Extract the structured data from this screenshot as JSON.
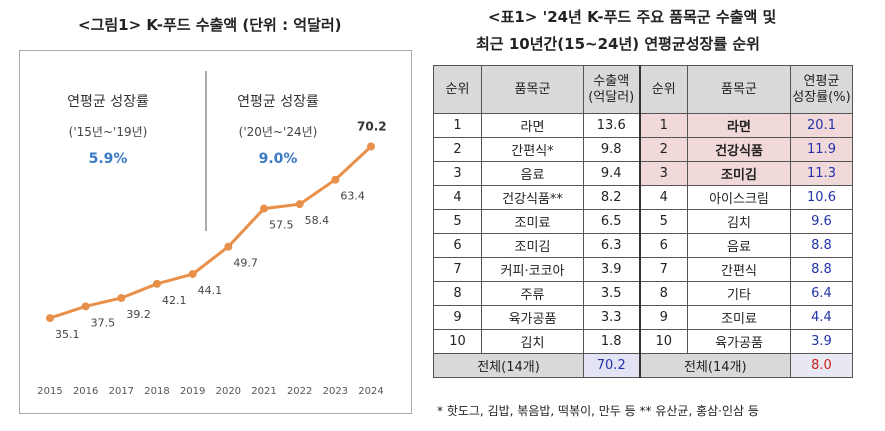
{
  "figure": {
    "title": "<그림1> K-푸드 수출액 (단위 : 억달러)",
    "growth_blocks": [
      {
        "label": "연평균 성장률",
        "period": "('15년~'19년)",
        "rate": "5.9%"
      },
      {
        "label": "연평균 성장률",
        "period": "('20년~'24년)",
        "rate": "9.0%"
      }
    ],
    "colors": {
      "line": "#e8904a",
      "marker": "#e8904a",
      "rate_text": "#3a7ac4"
    }
  },
  "chart_data": {
    "type": "line",
    "title": "<그림1> K-푸드 수출액 (단위 : 억달러)",
    "xlabel": "",
    "ylabel": "",
    "x": [
      "2015",
      "2016",
      "2017",
      "2018",
      "2019",
      "2020",
      "2021",
      "2022",
      "2023",
      "2024"
    ],
    "series": [
      {
        "values": [
          35.1,
          37.5,
          39.2,
          42.1,
          44.1,
          49.7,
          57.5,
          58.4,
          63.4,
          70.2
        ]
      }
    ],
    "ylim": [
      30,
      75
    ],
    "grid": false,
    "legend": "none"
  },
  "table": {
    "title_line1": "<표1> '24년 K-푸드 주요 품목군 수출액 및",
    "title_line2": "최근 10년간(15~24년) 연평균성장률 순위",
    "headers": [
      "순위",
      "품목군",
      "수출액\n(억달러)",
      "순위",
      "품목군",
      "연평균\n성장률(%)"
    ],
    "header_lines": {
      "export_line1": "수출액",
      "export_line2": "(억달러)",
      "growth_line1": "연평균",
      "growth_line2": "성장률(%)"
    },
    "rows": [
      {
        "rank": "1",
        "item": "라면",
        "export": "13.6",
        "g_rank": "1",
        "g_item": "라면",
        "g_rate": "20.1"
      },
      {
        "rank": "2",
        "item": "간편식*",
        "export": "9.8",
        "g_rank": "2",
        "g_item": "건강식품",
        "g_rate": "11.9"
      },
      {
        "rank": "3",
        "item": "음료",
        "export": "9.4",
        "g_rank": "3",
        "g_item": "조미김",
        "g_rate": "11.3"
      },
      {
        "rank": "4",
        "item": "건강식품**",
        "export": "8.2",
        "g_rank": "4",
        "g_item": "아이스크림",
        "g_rate": "10.6"
      },
      {
        "rank": "5",
        "item": "조미료",
        "export": "6.5",
        "g_rank": "5",
        "g_item": "김치",
        "g_rate": "9.6"
      },
      {
        "rank": "6",
        "item": "조미김",
        "export": "6.3",
        "g_rank": "6",
        "g_item": "음료",
        "g_rate": "8.8"
      },
      {
        "rank": "7",
        "item": "커피·코코아",
        "export": "3.9",
        "g_rank": "7",
        "g_item": "간편식",
        "g_rate": "8.8"
      },
      {
        "rank": "8",
        "item": "주류",
        "export": "3.5",
        "g_rank": "8",
        "g_item": "기타",
        "g_rate": "6.4"
      },
      {
        "rank": "9",
        "item": "육가공품",
        "export": "3.3",
        "g_rank": "9",
        "g_item": "조미료",
        "g_rate": "4.4"
      },
      {
        "rank": "10",
        "item": "김치",
        "export": "1.8",
        "g_rank": "10",
        "g_item": "육가공품",
        "g_rate": "3.9"
      }
    ],
    "total": {
      "label": "전체(14개)",
      "export": "70.2",
      "g_label": "전체(14개)",
      "g_rate": "8.0"
    },
    "highlight_color": "#f2d9d9",
    "footnote": "* 핫도그, 김밥, 볶음밥, 떡볶이, 만두 등  ** 유산균, 홍삼·인삼 등"
  }
}
